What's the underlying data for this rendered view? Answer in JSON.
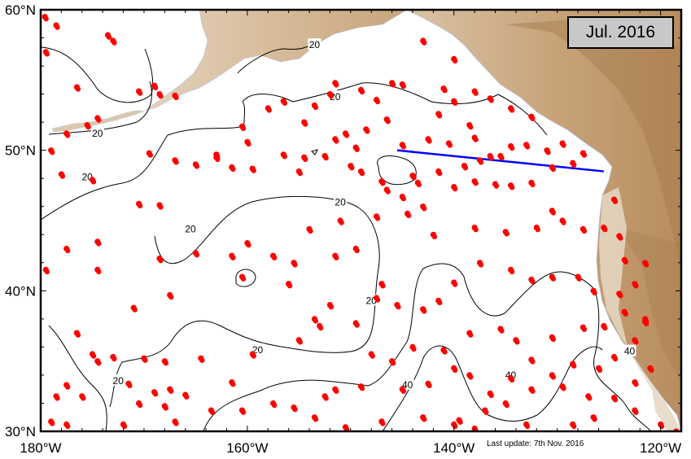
{
  "map": {
    "title": "Jul. 2016",
    "last_update": "Last update: 7th Nov. 2016",
    "extent": {
      "lon_min": -180,
      "lon_max": -118,
      "lat_min": 30,
      "lat_max": 60
    },
    "lat_ticks": [
      {
        "value": 30,
        "label": "30°N"
      },
      {
        "value": 40,
        "label": "40°N"
      },
      {
        "value": 50,
        "label": "50°N"
      },
      {
        "value": 60,
        "label": "60°N"
      }
    ],
    "lon_ticks": [
      {
        "value": -180,
        "label": "180°W"
      },
      {
        "value": -160,
        "label": "160°W"
      },
      {
        "value": -140,
        "label": "140°W"
      },
      {
        "value": -120,
        "label": "120°W"
      }
    ],
    "contour_labels": [
      {
        "text": "20",
        "lon": -153.5,
        "lat": 57.5
      },
      {
        "text": "20",
        "lon": -174.5,
        "lat": 51.2
      },
      {
        "text": "20",
        "lon": -151.5,
        "lat": 53.8
      },
      {
        "text": "20",
        "lon": -175.5,
        "lat": 48.1
      },
      {
        "text": "20",
        "lon": -165.5,
        "lat": 44.4
      },
      {
        "text": "20",
        "lon": -151.0,
        "lat": 46.3
      },
      {
        "text": "20",
        "lon": -148.0,
        "lat": 39.3
      },
      {
        "text": "20",
        "lon": -159.0,
        "lat": 35.8
      },
      {
        "text": "20",
        "lon": -172.5,
        "lat": 33.6
      },
      {
        "text": "40",
        "lon": -144.5,
        "lat": 33.3
      },
      {
        "text": "40",
        "lon": -134.5,
        "lat": 34.0
      },
      {
        "text": "40",
        "lon": -123.0,
        "lat": 35.7
      }
    ],
    "section_line": {
      "color": "#0000ff",
      "start": [
        -145.5,
        50.0
      ],
      "end": [
        -125.5,
        48.5
      ]
    },
    "float_color": "#ff0000",
    "floats": [
      [
        -179.6,
        59.5
      ],
      [
        -178.5,
        58.9
      ],
      [
        -179.5,
        57.0
      ],
      [
        -173.5,
        58.2
      ],
      [
        -173.0,
        57.8
      ],
      [
        -179.0,
        50.0
      ],
      [
        -177.5,
        51.2
      ],
      [
        -175.5,
        51.8
      ],
      [
        -174.5,
        52.3
      ],
      [
        -176.5,
        54.5
      ],
      [
        -170.5,
        54.2
      ],
      [
        -169.0,
        54.6
      ],
      [
        -168.5,
        54.0
      ],
      [
        -167.0,
        53.9
      ],
      [
        -169.5,
        49.8
      ],
      [
        -167.0,
        49.3
      ],
      [
        -165.0,
        49.0
      ],
      [
        -163.0,
        49.7
      ],
      [
        -161.5,
        48.8
      ],
      [
        -178.0,
        48.3
      ],
      [
        -175.0,
        47.9
      ],
      [
        -170.5,
        46.2
      ],
      [
        -168.5,
        46.1
      ],
      [
        -174.5,
        43.5
      ],
      [
        -177.5,
        43.0
      ],
      [
        -174.5,
        41.5
      ],
      [
        -168.5,
        42.3
      ],
      [
        -165.0,
        42.7
      ],
      [
        -161.5,
        42.5
      ],
      [
        -179.5,
        41.5
      ],
      [
        -167.5,
        39.7
      ],
      [
        -171.0,
        38.8
      ],
      [
        -176.5,
        37.0
      ],
      [
        -175.0,
        35.5
      ],
      [
        -174.5,
        35.0
      ],
      [
        -173.0,
        35.3
      ],
      [
        -170.0,
        35.2
      ],
      [
        -168.0,
        35.0
      ],
      [
        -164.5,
        35.2
      ],
      [
        -177.5,
        33.3
      ],
      [
        -176.0,
        32.5
      ],
      [
        -171.5,
        33.4
      ],
      [
        -169.0,
        32.8
      ],
      [
        -167.5,
        33.0
      ],
      [
        -166.0,
        32.6
      ],
      [
        -161.5,
        33.5
      ],
      [
        -159.5,
        35.5
      ],
      [
        -163.5,
        31.5
      ],
      [
        -168.0,
        31.8
      ],
      [
        -170.5,
        32.0
      ],
      [
        -178.5,
        32.5
      ],
      [
        -179.0,
        30.7
      ],
      [
        -177.5,
        30.5
      ],
      [
        -172.0,
        30.5
      ],
      [
        -167.0,
        30.7
      ],
      [
        -160.5,
        31.5
      ],
      [
        -156.5,
        53.5
      ],
      [
        -158.0,
        53.0
      ],
      [
        -160.5,
        51.7
      ],
      [
        -154.5,
        52.0
      ],
      [
        -153.5,
        53.2
      ],
      [
        -152.0,
        54.0
      ],
      [
        -151.5,
        54.8
      ],
      [
        -149.0,
        54.3
      ],
      [
        -147.5,
        53.6
      ],
      [
        -146.0,
        54.8
      ],
      [
        -145.0,
        54.7
      ],
      [
        -141.0,
        54.4
      ],
      [
        -140.0,
        53.5
      ],
      [
        -138.0,
        54.2
      ],
      [
        -136.5,
        53.7
      ],
      [
        -134.5,
        53.0
      ],
      [
        -132.5,
        52.4
      ],
      [
        -140.0,
        56.5
      ],
      [
        -143.0,
        57.8
      ],
      [
        -141.5,
        52.6
      ],
      [
        -138.5,
        51.8
      ],
      [
        -138.0,
        50.9
      ],
      [
        -140.5,
        50.5
      ],
      [
        -142.5,
        50.8
      ],
      [
        -145.0,
        50.4
      ],
      [
        -146.5,
        52.2
      ],
      [
        -148.5,
        51.5
      ],
      [
        -149.5,
        50.2
      ],
      [
        -150.5,
        51.2
      ],
      [
        -151.5,
        50.8
      ],
      [
        -152.5,
        49.6
      ],
      [
        -154.5,
        49.5
      ],
      [
        -155.0,
        48.5
      ],
      [
        -156.5,
        49.7
      ],
      [
        -159.5,
        48.7
      ],
      [
        -160.0,
        50.6
      ],
      [
        -163.0,
        49.5
      ],
      [
        -150.0,
        48.9
      ],
      [
        -149.0,
        48.5
      ],
      [
        -147.0,
        47.8
      ],
      [
        -144.0,
        48.2
      ],
      [
        -143.5,
        47.7
      ],
      [
        -141.5,
        48.5
      ],
      [
        -139.0,
        48.9
      ],
      [
        -137.5,
        49.3
      ],
      [
        -136.5,
        49.6
      ],
      [
        -135.5,
        49.6
      ],
      [
        -134.5,
        50.3
      ],
      [
        -133.0,
        50.4
      ],
      [
        -131.0,
        50.0
      ],
      [
        -129.5,
        50.5
      ],
      [
        -127.5,
        49.8
      ],
      [
        -128.5,
        49.1
      ],
      [
        -130.5,
        48.8
      ],
      [
        -132.5,
        47.7
      ],
      [
        -134.5,
        47.5
      ],
      [
        -136.0,
        47.6
      ],
      [
        -138.0,
        47.8
      ],
      [
        -140.0,
        47.4
      ],
      [
        -143.0,
        46.0
      ],
      [
        -144.5,
        45.5
      ],
      [
        -146.5,
        47.2
      ],
      [
        -145.0,
        46.7
      ],
      [
        -154.0,
        44.4
      ],
      [
        -151.0,
        45.0
      ],
      [
        -147.5,
        45.3
      ],
      [
        -142.0,
        44.0
      ],
      [
        -138.0,
        44.5
      ],
      [
        -135.0,
        44.2
      ],
      [
        -132.0,
        44.5
      ],
      [
        -130.5,
        45.7
      ],
      [
        -129.5,
        45.0
      ],
      [
        -127.5,
        44.4
      ],
      [
        -125.5,
        44.5
      ],
      [
        -124.5,
        46.5
      ],
      [
        -124.0,
        43.9
      ],
      [
        -123.5,
        42.2
      ],
      [
        -121.5,
        42.0
      ],
      [
        -122.5,
        40.5
      ],
      [
        -124.0,
        39.8
      ],
      [
        -126.5,
        40.0
      ],
      [
        -128.0,
        41.0
      ],
      [
        -130.5,
        41.0
      ],
      [
        -132.5,
        40.8
      ],
      [
        -134.5,
        41.5
      ],
      [
        -137.5,
        42.0
      ],
      [
        -140.0,
        40.6
      ],
      [
        -141.5,
        39.3
      ],
      [
        -143.0,
        38.7
      ],
      [
        -145.5,
        39.0
      ],
      [
        -147.5,
        39.5
      ],
      [
        -152.0,
        39.0
      ],
      [
        -153.5,
        38.0
      ],
      [
        -155.0,
        36.5
      ],
      [
        -156.0,
        40.5
      ],
      [
        -157.5,
        42.5
      ],
      [
        -155.5,
        42.0
      ],
      [
        -160.0,
        43.4
      ],
      [
        -160.5,
        41.0
      ],
      [
        -151.5,
        42.5
      ],
      [
        -149.5,
        43.0
      ],
      [
        -147.0,
        40.5
      ],
      [
        -149.5,
        37.7
      ],
      [
        -153.0,
        37.5
      ],
      [
        -148.0,
        35.5
      ],
      [
        -146.0,
        35.0
      ],
      [
        -144.0,
        36.0
      ],
      [
        -141.0,
        35.8
      ],
      [
        -138.5,
        37.0
      ],
      [
        -135.5,
        37.3
      ],
      [
        -134.0,
        36.5
      ],
      [
        -130.5,
        36.7
      ],
      [
        -127.5,
        37.4
      ],
      [
        -125.5,
        37.5
      ],
      [
        -121.5,
        37.8
      ],
      [
        -123.5,
        38.5
      ],
      [
        -121.5,
        38.0
      ],
      [
        -122.5,
        36.5
      ],
      [
        -124.5,
        35.3
      ],
      [
        -126.0,
        34.5
      ],
      [
        -128.5,
        34.8
      ],
      [
        -130.5,
        34.0
      ],
      [
        -132.5,
        35.1
      ],
      [
        -134.5,
        33.8
      ],
      [
        -136.5,
        32.7
      ],
      [
        -138.5,
        34.0
      ],
      [
        -140.0,
        34.5
      ],
      [
        -142.5,
        33.4
      ],
      [
        -145.0,
        33.0
      ],
      [
        -149.0,
        33.2
      ],
      [
        -151.5,
        33.0
      ],
      [
        -152.5,
        32.5
      ],
      [
        -153.5,
        31.0
      ],
      [
        -155.5,
        31.7
      ],
      [
        -157.5,
        32.0
      ],
      [
        -150.5,
        30.3
      ],
      [
        -147.0,
        30.7
      ],
      [
        -143.0,
        31.0
      ],
      [
        -139.5,
        30.8
      ],
      [
        -137.0,
        31.5
      ],
      [
        -135.0,
        32.0
      ],
      [
        -132.5,
        33.0
      ],
      [
        -129.5,
        33.2
      ],
      [
        -127.0,
        32.5
      ],
      [
        -124.5,
        32.4
      ],
      [
        -122.5,
        33.5
      ],
      [
        -121.0,
        34.5
      ],
      [
        -122.5,
        31.5
      ],
      [
        -120.0,
        30.5
      ],
      [
        -118.5,
        30.0
      ],
      [
        -126.5,
        31.0
      ],
      [
        -128.5,
        30.5
      ],
      [
        -133.0,
        30.5
      ],
      [
        -138.0,
        30.2
      ],
      [
        -140.0,
        30.5
      ]
    ]
  }
}
